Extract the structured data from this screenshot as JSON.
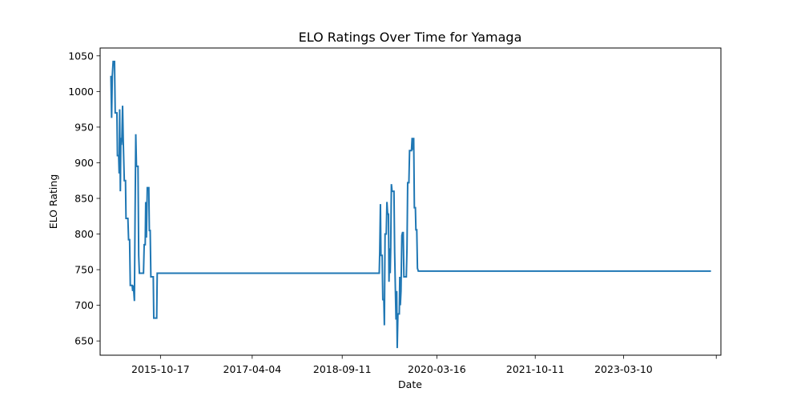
{
  "chart_data": {
    "type": "line",
    "title": "ELO Ratings Over Time for Yamaga",
    "xlabel": "Date",
    "ylabel": "ELO Rating",
    "grid": false,
    "legend": "none",
    "line_color": "#1f77b4",
    "x_tick_labels": [
      "2015-10-17",
      "2017-04-04",
      "2018-09-11",
      "2020-03-16",
      "2021-10-11",
      "2023-03-10",
      ""
    ],
    "x_ticks": [
      "2015-10-17",
      "2017-04-04",
      "2018-09-11",
      "2020-03-16",
      "2021-10-11",
      "2023-03-10",
      "2024-09-01"
    ],
    "y_ticks": [
      650,
      700,
      750,
      800,
      850,
      900,
      950,
      1000,
      1050
    ],
    "xlim": [
      "2014-10-30",
      "2024-09-28"
    ],
    "ylim": [
      630,
      1061
    ],
    "series": [
      {
        "name": "",
        "points": [
          [
            "2015-01-01",
            1022
          ],
          [
            "2015-01-05",
            963
          ],
          [
            "2015-01-09",
            1022
          ],
          [
            "2015-01-14",
            1042
          ],
          [
            "2015-01-22",
            1042
          ],
          [
            "2015-01-26",
            970
          ],
          [
            "2015-02-05",
            970
          ],
          [
            "2015-02-08",
            910
          ],
          [
            "2015-02-15",
            910
          ],
          [
            "2015-02-18",
            885
          ],
          [
            "2015-02-21",
            975
          ],
          [
            "2015-02-25",
            860
          ],
          [
            "2015-02-28",
            935
          ],
          [
            "2015-03-03",
            925
          ],
          [
            "2015-03-06",
            935
          ],
          [
            "2015-03-10",
            980
          ],
          [
            "2015-03-14",
            930
          ],
          [
            "2015-03-20",
            875
          ],
          [
            "2015-03-27",
            875
          ],
          [
            "2015-03-30",
            822
          ],
          [
            "2015-04-10",
            822
          ],
          [
            "2015-04-14",
            792
          ],
          [
            "2015-04-20",
            792
          ],
          [
            "2015-04-24",
            728
          ],
          [
            "2015-05-05",
            728
          ],
          [
            "2015-05-08",
            720
          ],
          [
            "2015-05-12",
            728
          ],
          [
            "2015-05-18",
            706
          ],
          [
            "2015-05-22",
            830
          ],
          [
            "2015-05-26",
            940
          ],
          [
            "2015-05-30",
            895
          ],
          [
            "2015-06-08",
            895
          ],
          [
            "2015-06-12",
            770
          ],
          [
            "2015-06-16",
            745
          ],
          [
            "2015-07-10",
            745
          ],
          [
            "2015-07-14",
            785
          ],
          [
            "2015-07-20",
            785
          ],
          [
            "2015-07-23",
            845
          ],
          [
            "2015-07-27",
            795
          ],
          [
            "2015-08-01",
            865
          ],
          [
            "2015-08-10",
            865
          ],
          [
            "2015-08-13",
            805
          ],
          [
            "2015-08-18",
            805
          ],
          [
            "2015-08-22",
            740
          ],
          [
            "2015-09-05",
            740
          ],
          [
            "2015-09-08",
            682
          ],
          [
            "2015-09-25",
            682
          ],
          [
            "2015-09-28",
            745
          ],
          [
            "2019-04-15",
            745
          ],
          [
            "2019-04-18",
            775
          ],
          [
            "2019-04-22",
            842
          ],
          [
            "2019-04-25",
            770
          ],
          [
            "2019-05-02",
            770
          ],
          [
            "2019-05-06",
            708
          ],
          [
            "2019-05-12",
            708
          ],
          [
            "2019-05-15",
            672
          ],
          [
            "2019-05-19",
            800
          ],
          [
            "2019-05-26",
            800
          ],
          [
            "2019-05-30",
            845
          ],
          [
            "2019-06-03",
            828
          ],
          [
            "2019-06-08",
            828
          ],
          [
            "2019-06-11",
            733
          ],
          [
            "2019-06-15",
            780
          ],
          [
            "2019-06-18",
            745
          ],
          [
            "2019-06-21",
            780
          ],
          [
            "2019-06-25",
            870
          ],
          [
            "2019-06-29",
            860
          ],
          [
            "2019-07-10",
            860
          ],
          [
            "2019-07-14",
            775
          ],
          [
            "2019-07-18",
            725
          ],
          [
            "2019-07-22",
            680
          ],
          [
            "2019-07-26",
            720
          ],
          [
            "2019-07-29",
            640
          ],
          [
            "2019-08-02",
            688
          ],
          [
            "2019-08-10",
            688
          ],
          [
            "2019-08-13",
            740
          ],
          [
            "2019-08-16",
            700
          ],
          [
            "2019-08-20",
            720
          ],
          [
            "2019-08-25",
            798
          ],
          [
            "2019-08-29",
            802
          ],
          [
            "2019-09-02",
            802
          ],
          [
            "2019-09-06",
            740
          ],
          [
            "2019-09-20",
            740
          ],
          [
            "2019-09-24",
            780
          ],
          [
            "2019-09-28",
            872
          ],
          [
            "2019-10-05",
            872
          ],
          [
            "2019-10-09",
            917
          ],
          [
            "2019-10-20",
            917
          ],
          [
            "2019-10-24",
            935
          ],
          [
            "2019-10-28",
            918
          ],
          [
            "2019-11-02",
            935
          ],
          [
            "2019-11-06",
            837
          ],
          [
            "2019-11-12",
            837
          ],
          [
            "2019-11-15",
            806
          ],
          [
            "2019-11-20",
            806
          ],
          [
            "2019-11-24",
            752
          ],
          [
            "2019-11-29",
            748
          ],
          [
            "2024-08-01",
            748
          ]
        ]
      }
    ]
  }
}
